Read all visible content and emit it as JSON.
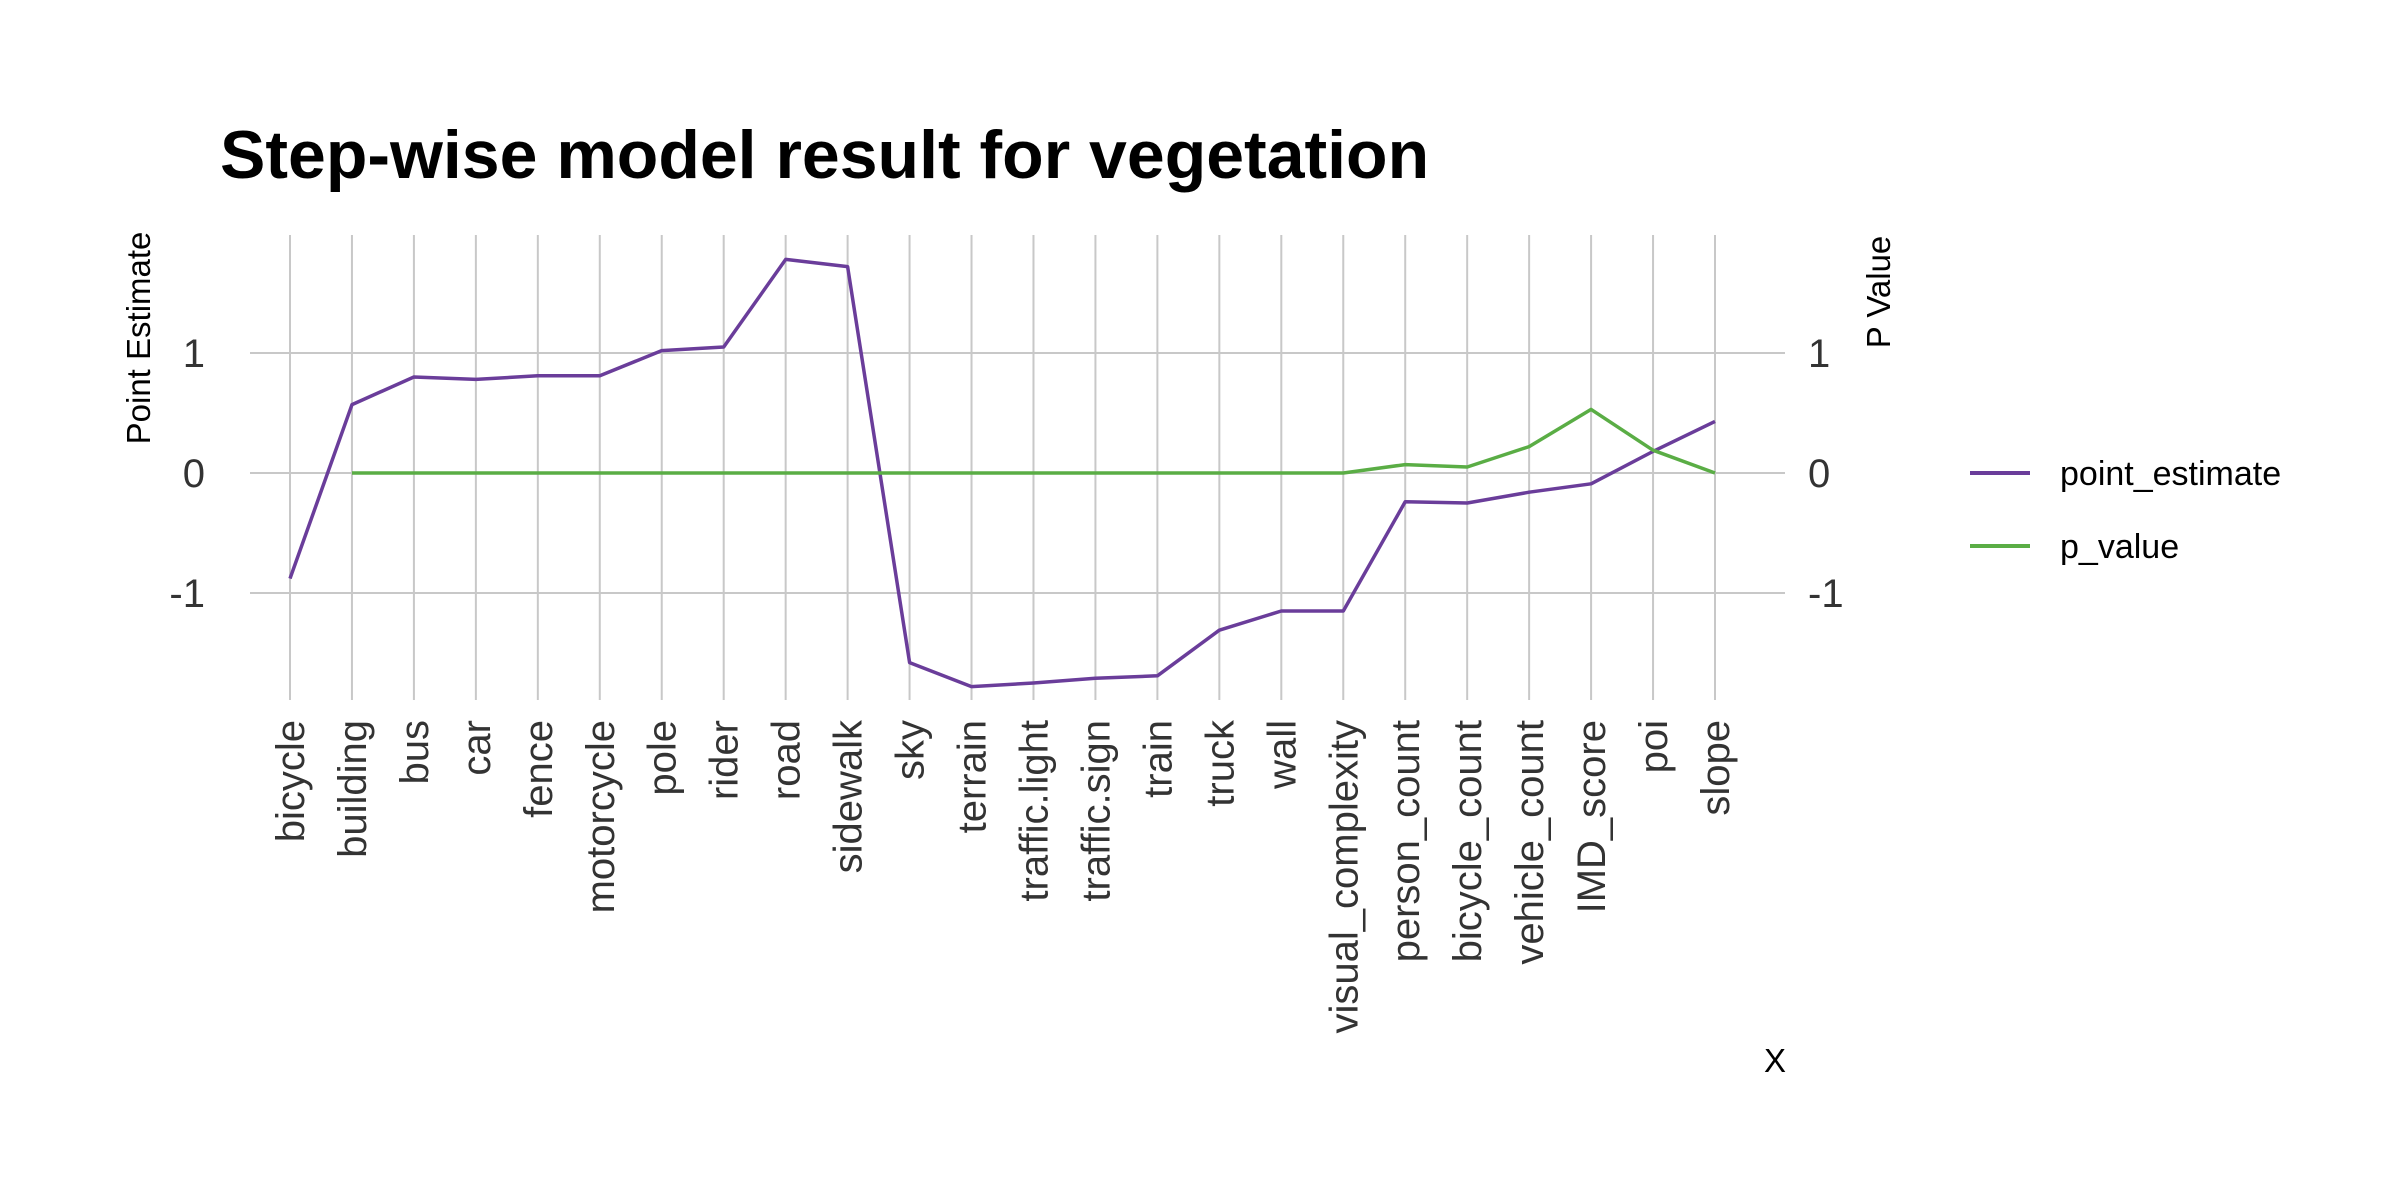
{
  "chart_data": {
    "type": "line",
    "title": "Step-wise model result for vegetation",
    "xlabel": "X",
    "ylabel": "Point Estimate",
    "ylabel_right": "P Value",
    "y_ticks": [
      -1,
      0,
      1
    ],
    "ylim": [
      -1.95,
      1.95
    ],
    "grid": true,
    "legend_position": "right",
    "categories": [
      "bicycle",
      "building",
      "bus",
      "car",
      "fence",
      "motorcycle",
      "pole",
      "rider",
      "road",
      "sidewalk",
      "sky",
      "terrain",
      "traffic.light",
      "traffic.sign",
      "train",
      "truck",
      "wall",
      "visual_complexity",
      "person_count",
      "bicycle_count",
      "vehicle_count",
      "IMD_score",
      "poi",
      "slope"
    ],
    "series": [
      {
        "name": "point_estimate",
        "color": "#6a3d9a",
        "values": [
          -0.88,
          0.57,
          0.8,
          0.78,
          0.81,
          0.81,
          1.02,
          1.05,
          1.78,
          1.72,
          -1.58,
          -1.78,
          -1.75,
          -1.71,
          -1.69,
          -1.31,
          -1.15,
          -1.15,
          -0.24,
          -0.25,
          -0.16,
          -0.09,
          0.18,
          0.43
        ]
      },
      {
        "name": "p_value",
        "color": "#5aad45",
        "values": [
          null,
          0.0,
          0.0,
          0.0,
          0.0,
          0.0,
          0.0,
          0.0,
          0.0,
          0.0,
          0.0,
          0.0,
          0.0,
          0.0,
          0.0,
          0.0,
          0.0,
          0.0,
          0.07,
          0.05,
          0.22,
          0.53,
          0.19,
          0.0
        ]
      }
    ]
  }
}
